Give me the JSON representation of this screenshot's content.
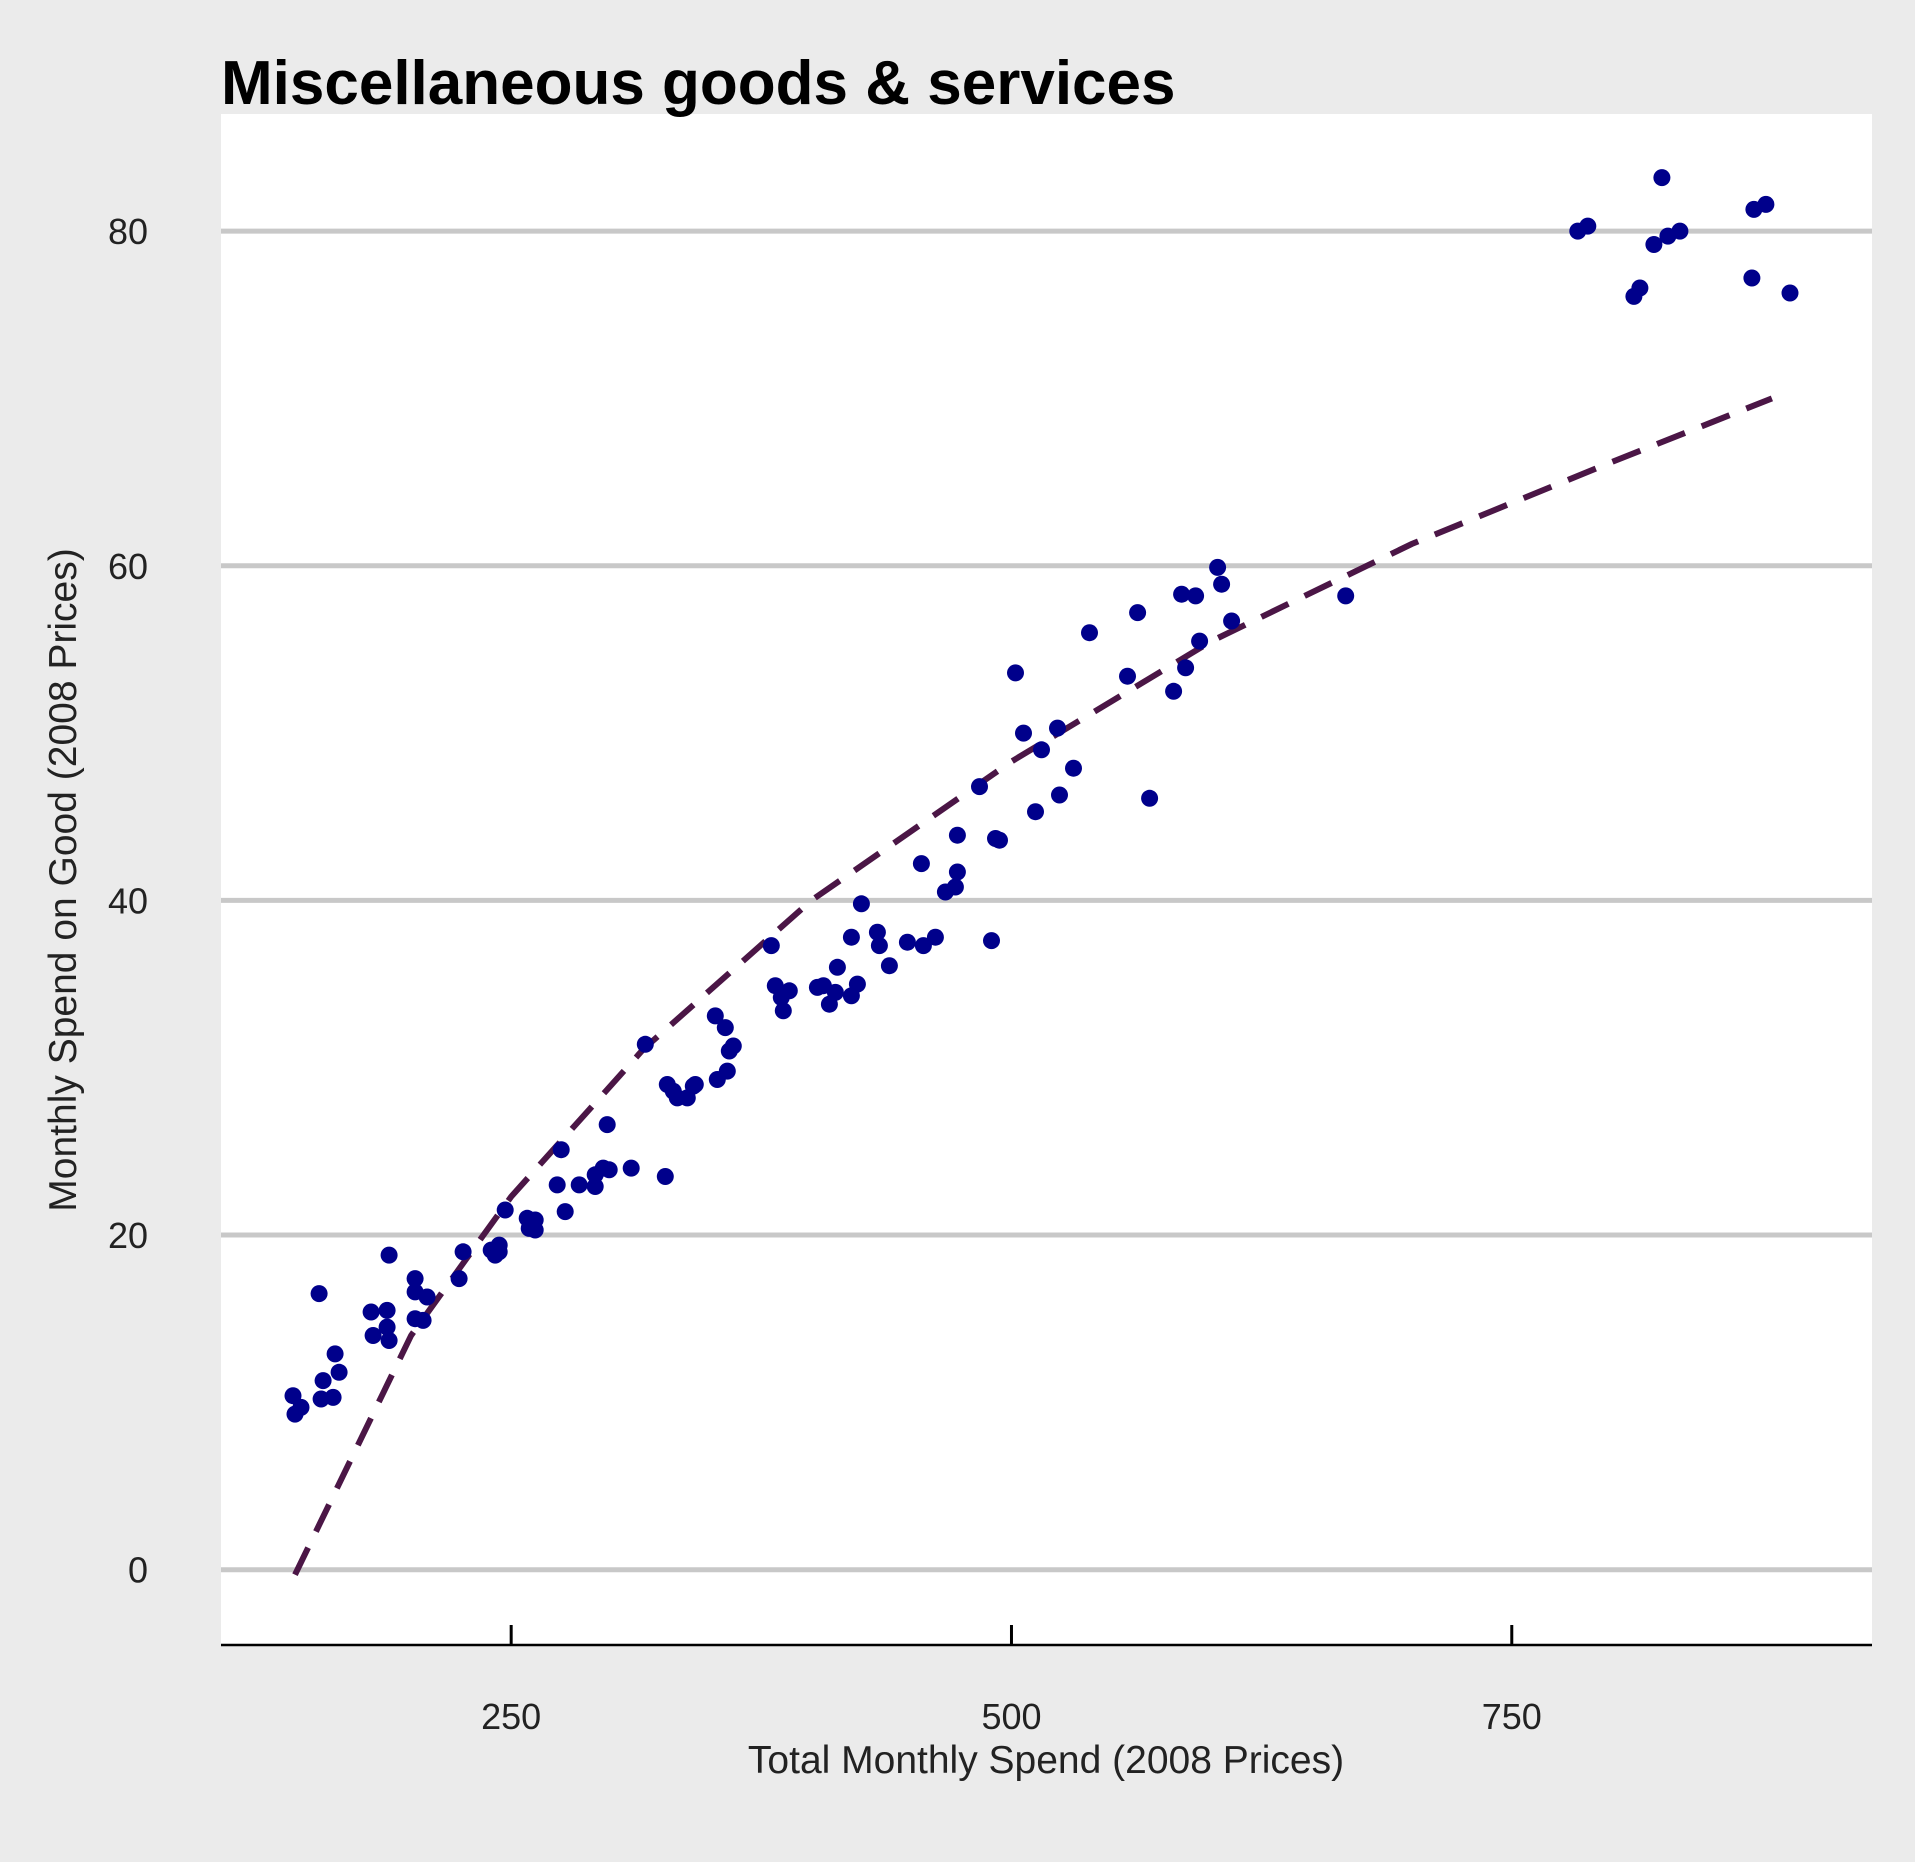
{
  "chart_data": {
    "type": "scatter",
    "title": "Miscellaneous goods & services",
    "xlabel": "Total Monthly Spend (2008 Prices)",
    "ylabel": "Monthly Spend on Good (2008 Prices)",
    "xlim": [
      105,
      930
    ],
    "ylim": [
      -4.5,
      87
    ],
    "x_ticks": [
      250,
      500,
      750
    ],
    "y_ticks": [
      0,
      20,
      40,
      60,
      80
    ],
    "grid": "horizontal",
    "colors": {
      "points": "#00008b",
      "trend": "#4b1646",
      "grid": "#c8c8c8",
      "panel": "#ffffff",
      "background": "#ebebeb"
    },
    "series": [
      {
        "kind": "points",
        "points": [
          [
            141,
            10.4
          ],
          [
            142,
            9.3
          ],
          [
            145,
            9.7
          ],
          [
            154,
            16.5
          ],
          [
            155,
            10.2
          ],
          [
            156,
            11.3
          ],
          [
            161,
            10.3
          ],
          [
            162,
            12.9
          ],
          [
            164,
            11.8
          ],
          [
            180,
            15.4
          ],
          [
            181,
            14.0
          ],
          [
            188,
            15.5
          ],
          [
            188,
            14.5
          ],
          [
            189,
            18.8
          ],
          [
            189,
            13.7
          ],
          [
            202,
            17.4
          ],
          [
            202,
            16.6
          ],
          [
            202,
            15.0
          ],
          [
            206,
            14.9
          ],
          [
            208,
            16.3
          ],
          [
            224,
            17.4
          ],
          [
            226,
            19.0
          ],
          [
            240,
            19.1
          ],
          [
            242,
            18.8
          ],
          [
            244,
            19.4
          ],
          [
            244,
            19.0
          ],
          [
            247,
            21.5
          ],
          [
            258,
            21.0
          ],
          [
            259,
            20.4
          ],
          [
            262,
            20.3
          ],
          [
            262,
            20.9
          ],
          [
            273,
            23.0
          ],
          [
            275,
            25.1
          ],
          [
            277,
            21.4
          ],
          [
            284,
            23.0
          ],
          [
            292,
            22.9
          ],
          [
            292,
            23.6
          ],
          [
            296,
            24.0
          ],
          [
            298,
            26.6
          ],
          [
            299,
            23.9
          ],
          [
            310,
            24.0
          ],
          [
            317,
            31.4
          ],
          [
            327,
            23.5
          ],
          [
            328,
            29.0
          ],
          [
            331,
            28.6
          ],
          [
            333,
            28.2
          ],
          [
            338,
            28.2
          ],
          [
            341,
            28.9
          ],
          [
            342,
            29.0
          ],
          [
            352,
            33.1
          ],
          [
            353,
            29.3
          ],
          [
            357,
            32.4
          ],
          [
            358,
            29.8
          ],
          [
            359,
            31.0
          ],
          [
            361,
            31.3
          ],
          [
            380,
            37.3
          ],
          [
            382,
            34.9
          ],
          [
            385,
            34.2
          ],
          [
            386,
            33.4
          ],
          [
            389,
            34.6
          ],
          [
            403,
            34.8
          ],
          [
            406,
            34.9
          ],
          [
            409,
            33.8
          ],
          [
            412,
            34.5
          ],
          [
            413,
            36.0
          ],
          [
            420,
            34.3
          ],
          [
            420,
            37.8
          ],
          [
            423,
            35.0
          ],
          [
            425,
            39.8
          ],
          [
            433,
            38.1
          ],
          [
            434,
            37.3
          ],
          [
            439,
            36.1
          ],
          [
            448,
            37.5
          ],
          [
            455,
            42.2
          ],
          [
            456,
            37.3
          ],
          [
            462,
            37.8
          ],
          [
            467,
            40.5
          ],
          [
            472,
            40.8
          ],
          [
            473,
            43.9
          ],
          [
            473,
            41.7
          ],
          [
            484,
            46.8
          ],
          [
            490,
            37.6
          ],
          [
            492,
            43.7
          ],
          [
            494,
            43.6
          ],
          [
            502,
            53.6
          ],
          [
            506,
            50.0
          ],
          [
            512,
            45.3
          ],
          [
            515,
            49.0
          ],
          [
            523,
            50.3
          ],
          [
            524,
            46.3
          ],
          [
            531,
            47.9
          ],
          [
            539,
            56.0
          ],
          [
            558,
            53.4
          ],
          [
            563,
            57.2
          ],
          [
            569,
            46.1
          ],
          [
            581,
            52.5
          ],
          [
            585,
            58.3
          ],
          [
            587,
            53.9
          ],
          [
            592,
            58.2
          ],
          [
            594,
            55.5
          ],
          [
            603,
            59.9
          ],
          [
            605,
            58.9
          ],
          [
            610,
            56.7
          ],
          [
            667,
            58.2
          ],
          [
            783,
            80.0
          ],
          [
            788,
            80.3
          ],
          [
            811,
            76.1
          ],
          [
            814,
            76.6
          ],
          [
            821,
            79.2
          ],
          [
            825,
            83.2
          ],
          [
            828,
            79.7
          ],
          [
            834,
            80.0
          ],
          [
            870,
            77.2
          ],
          [
            871,
            81.3
          ],
          [
            877,
            81.6
          ],
          [
            889,
            76.3
          ]
        ]
      },
      {
        "kind": "dashed-line",
        "points": [
          [
            142,
            -0.3
          ],
          [
            200,
            14.0
          ],
          [
            250,
            22.3
          ],
          [
            316,
            31.1
          ],
          [
            400,
            40.0
          ],
          [
            500,
            48.3
          ],
          [
            600,
            55.5
          ],
          [
            700,
            61.3
          ],
          [
            800,
            66.2
          ],
          [
            880,
            70.0
          ]
        ]
      }
    ]
  }
}
